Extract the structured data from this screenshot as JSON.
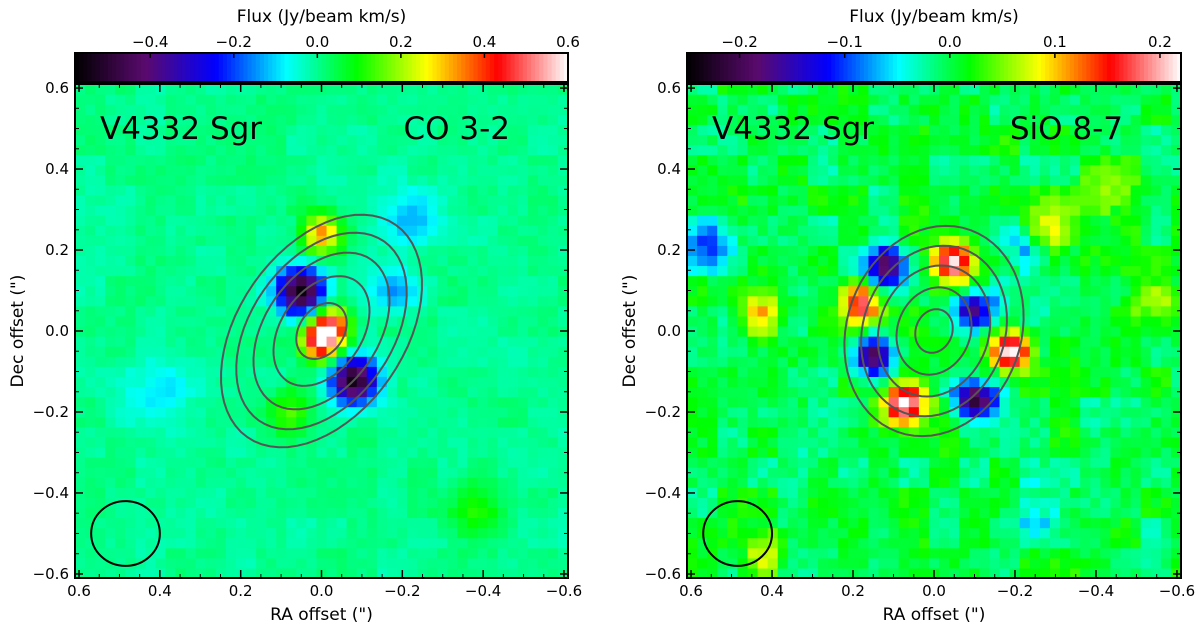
{
  "colormap": {
    "name": "rainbow-with-white-top",
    "stops": [
      "#000000",
      "#5a0a6e",
      "#0000ff",
      "#00ffff",
      "#00ff00",
      "#ffff00",
      "#ff0000",
      "#ffffff"
    ]
  },
  "chart_data": [
    {
      "type": "heatmap",
      "title": "",
      "source_label": "V4332 Sgr",
      "line_label": "CO 3-2",
      "colorbar_label": "Flux (Jy/beam km/s)",
      "colorbar_range": [
        -0.58,
        0.6
      ],
      "colorbar_ticks": [
        -0.4,
        -0.2,
        0.0,
        0.2,
        0.4,
        0.6
      ],
      "colorbar_tick_labels": [
        "−0.4",
        "−0.2",
        "0.0",
        "0.2",
        "0.4",
        "0.6"
      ],
      "xlabel": "RA offset (\")",
      "ylabel": "Dec offset (\")",
      "xlim": [
        0.61,
        -0.61
      ],
      "ylim": [
        -0.61,
        0.61
      ],
      "xticks": [
        0.6,
        0.4,
        0.2,
        0.0,
        -0.2,
        -0.4,
        -0.6
      ],
      "xtick_labels": [
        "0.6",
        "0.4",
        "0.2",
        "0.0",
        "−0.2",
        "−0.4",
        "−0.6"
      ],
      "yticks": [
        -0.6,
        -0.4,
        -0.2,
        0.0,
        0.2,
        0.4,
        0.6
      ],
      "ytick_labels": [
        "−0.6",
        "−0.4",
        "−0.2",
        "0.0",
        "0.2",
        "0.4",
        "0.6"
      ],
      "background_flux": 0.0,
      "noise_flux": 0.03,
      "features": [
        {
          "ra": 0.0,
          "dec": -0.02,
          "flux": 0.6,
          "sigma": 0.035
        },
        {
          "ra": -0.03,
          "dec": 0.02,
          "flux": 0.3,
          "sigma": 0.03
        },
        {
          "ra": 0.05,
          "dec": 0.1,
          "flux": -0.55,
          "sigma": 0.04
        },
        {
          "ra": -0.08,
          "dec": -0.12,
          "flux": -0.55,
          "sigma": 0.04
        },
        {
          "ra": 0.0,
          "dec": 0.24,
          "flux": 0.35,
          "sigma": 0.035
        },
        {
          "ra": 0.08,
          "dec": -0.2,
          "flux": 0.15,
          "sigma": 0.04
        },
        {
          "ra": -0.18,
          "dec": 0.1,
          "flux": -0.15,
          "sigma": 0.04
        },
        {
          "ra": -0.22,
          "dec": 0.28,
          "flux": -0.12,
          "sigma": 0.05
        },
        {
          "ra": 0.4,
          "dec": -0.15,
          "flux": -0.1,
          "sigma": 0.06
        },
        {
          "ra": -0.38,
          "dec": -0.45,
          "flux": 0.12,
          "sigma": 0.05
        }
      ],
      "contours": [
        {
          "ra_center": 0.0,
          "dec_center": 0.0,
          "semi_major": 0.075,
          "semi_minor": 0.055,
          "position_angle_deg": 35
        },
        {
          "ra_center": 0.0,
          "dec_center": 0.0,
          "semi_major": 0.15,
          "semi_minor": 0.1,
          "position_angle_deg": 35
        },
        {
          "ra_center": 0.0,
          "dec_center": 0.0,
          "semi_major": 0.215,
          "semi_minor": 0.14,
          "position_angle_deg": 35
        },
        {
          "ra_center": 0.0,
          "dec_center": 0.0,
          "semi_major": 0.27,
          "semi_minor": 0.175,
          "position_angle_deg": 35
        },
        {
          "ra_center": 0.0,
          "dec_center": 0.0,
          "semi_major": 0.32,
          "semi_minor": 0.205,
          "position_angle_deg": 35
        }
      ],
      "beam": {
        "ra": 0.485,
        "dec": -0.5,
        "diameter_ra": 0.17,
        "diameter_dec": 0.16
      }
    },
    {
      "type": "heatmap",
      "title": "",
      "source_label": "V4332 Sgr",
      "line_label": "SiO 8-7",
      "colorbar_label": "Flux (Jy/beam km/s)",
      "colorbar_range": [
        -0.25,
        0.22
      ],
      "colorbar_ticks": [
        -0.2,
        -0.1,
        0.0,
        0.1,
        0.2
      ],
      "colorbar_tick_labels": [
        "−0.2",
        "−0.1",
        "0.0",
        "0.1",
        "0.2"
      ],
      "xlabel": "RA offset (\")",
      "ylabel": "Dec offset (\")",
      "xlim": [
        0.61,
        -0.61
      ],
      "ylim": [
        -0.61,
        0.61
      ],
      "xticks": [
        0.6,
        0.4,
        0.2,
        0.0,
        -0.2,
        -0.4,
        -0.6
      ],
      "xtick_labels": [
        "0.6",
        "0.4",
        "0.2",
        "0.0",
        "−0.2",
        "−0.4",
        "−0.6"
      ],
      "yticks": [
        -0.6,
        -0.4,
        -0.2,
        0.0,
        0.2,
        0.4,
        0.6
      ],
      "ytick_labels": [
        "−0.6",
        "−0.4",
        "−0.2",
        "0.0",
        "0.2",
        "0.4",
        "0.6"
      ],
      "background_flux": 0.0,
      "noise_flux": 0.035,
      "features": [
        {
          "ra": 0.12,
          "dec": 0.16,
          "flux": -0.19,
          "sigma": 0.035
        },
        {
          "ra": -0.05,
          "dec": 0.17,
          "flux": 0.2,
          "sigma": 0.035
        },
        {
          "ra": 0.18,
          "dec": 0.07,
          "flux": 0.17,
          "sigma": 0.035
        },
        {
          "ra": -0.1,
          "dec": 0.05,
          "flux": -0.19,
          "sigma": 0.035
        },
        {
          "ra": 0.15,
          "dec": -0.06,
          "flux": -0.22,
          "sigma": 0.035
        },
        {
          "ra": -0.19,
          "dec": -0.05,
          "flux": 0.22,
          "sigma": 0.035
        },
        {
          "ra": 0.07,
          "dec": -0.18,
          "flux": 0.22,
          "sigma": 0.035
        },
        {
          "ra": -0.1,
          "dec": -0.17,
          "flux": -0.24,
          "sigma": 0.035
        },
        {
          "ra": -0.22,
          "dec": 0.2,
          "flux": -0.08,
          "sigma": 0.04
        },
        {
          "ra": -0.28,
          "dec": 0.25,
          "flux": 0.08,
          "sigma": 0.05
        },
        {
          "ra": 0.43,
          "dec": 0.05,
          "flux": 0.09,
          "sigma": 0.04
        },
        {
          "ra": -0.55,
          "dec": 0.07,
          "flux": 0.08,
          "sigma": 0.04
        },
        {
          "ra": 0.55,
          "dec": 0.22,
          "flux": -0.08,
          "sigma": 0.05
        },
        {
          "ra": -0.25,
          "dec": -0.45,
          "flux": -0.06,
          "sigma": 0.05
        },
        {
          "ra": 0.42,
          "dec": -0.55,
          "flux": 0.07,
          "sigma": 0.04
        },
        {
          "ra": -0.45,
          "dec": 0.35,
          "flux": 0.06,
          "sigma": 0.05
        }
      ],
      "contours": [
        {
          "ra_center": 0.0,
          "dec_center": 0.0,
          "semi_major": 0.055,
          "semi_minor": 0.045,
          "position_angle_deg": 20
        },
        {
          "ra_center": 0.0,
          "dec_center": 0.0,
          "semi_major": 0.11,
          "semi_minor": 0.09,
          "position_angle_deg": 20
        },
        {
          "ra_center": 0.0,
          "dec_center": 0.0,
          "semi_major": 0.165,
          "semi_minor": 0.135,
          "position_angle_deg": 20
        },
        {
          "ra_center": 0.0,
          "dec_center": 0.0,
          "semi_major": 0.215,
          "semi_minor": 0.175,
          "position_angle_deg": 20
        },
        {
          "ra_center": 0.0,
          "dec_center": 0.0,
          "semi_major": 0.265,
          "semi_minor": 0.215,
          "position_angle_deg": 20
        }
      ],
      "beam": {
        "ra": 0.485,
        "dec": -0.5,
        "diameter_ra": 0.17,
        "diameter_dec": 0.16
      }
    }
  ]
}
